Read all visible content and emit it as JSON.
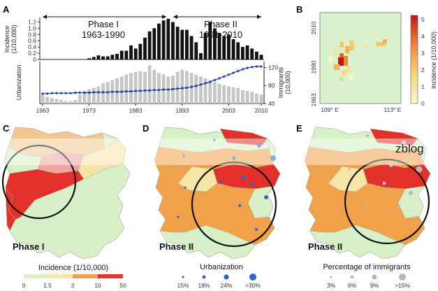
{
  "panel_labels": {
    "A": "A",
    "B": "B",
    "C": "C",
    "D": "D",
    "E": "E"
  },
  "chart_data": [
    {
      "id": "A-top",
      "type": "bar",
      "ylabel": "Incidence\n(1/10,000)",
      "ylim": [
        0,
        1.3
      ],
      "yticks": [
        "0",
        "0.2",
        "0.4",
        "0.6",
        "0.8",
        "1.0",
        "1.2"
      ],
      "x": [
        1963,
        1964,
        1965,
        1966,
        1967,
        1968,
        1969,
        1970,
        1971,
        1972,
        1973,
        1974,
        1975,
        1976,
        1977,
        1978,
        1979,
        1980,
        1981,
        1982,
        1983,
        1984,
        1985,
        1986,
        1987,
        1988,
        1989,
        1990,
        1991,
        1992,
        1993,
        1994,
        1995,
        1996,
        1997,
        1998,
        1999,
        2000,
        2001,
        2002,
        2003,
        2004,
        2005,
        2006,
        2007,
        2008,
        2009,
        2010
      ],
      "values": [
        0,
        0,
        0,
        0,
        0,
        0,
        0,
        0,
        0,
        0,
        0.04,
        0.08,
        0.13,
        0.1,
        0.1,
        0.15,
        0.18,
        0.28,
        0.28,
        0.45,
        0.35,
        0.5,
        0.7,
        0.9,
        1.0,
        1.15,
        1.25,
        1.3,
        1.2,
        1.05,
        0.95,
        0.95,
        0.75,
        0.55,
        0.2,
        0.85,
        1.2,
        1.0,
        0.85,
        0.75,
        0.8,
        0.65,
        0.55,
        0.4,
        0.45,
        0.35,
        0.25,
        0.15
      ],
      "annotations": [
        {
          "title": "Phase I",
          "range": "1963-1990"
        },
        {
          "title": "Phase II",
          "range": "1991-2010"
        }
      ]
    },
    {
      "id": "A-bottom",
      "type": "bar+line",
      "ylabel_left": "Urbanization",
      "ylabel_right": "Immigrants\n(10,000)",
      "right_ylim": [
        40,
        130
      ],
      "right_yticks": [
        "40",
        "80",
        "120"
      ],
      "xticks": [
        "1963",
        "1973",
        "1983",
        "1993",
        "2003",
        "2010"
      ],
      "x": [
        1963,
        1964,
        1965,
        1966,
        1967,
        1968,
        1969,
        1970,
        1971,
        1972,
        1973,
        1974,
        1975,
        1976,
        1977,
        1978,
        1979,
        1980,
        1981,
        1982,
        1983,
        1984,
        1985,
        1986,
        1987,
        1988,
        1989,
        1990,
        1991,
        1992,
        1993,
        1994,
        1995,
        1996,
        1997,
        1998,
        1999,
        2000,
        2001,
        2002,
        2003,
        2004,
        2005,
        2006,
        2007,
        2008,
        2009,
        2010
      ],
      "immigrants": [
        60,
        55,
        52,
        50,
        48,
        46,
        45,
        48,
        60,
        68,
        72,
        75,
        78,
        85,
        88,
        92,
        96,
        100,
        104,
        108,
        110,
        112,
        110,
        125,
        115,
        108,
        105,
        100,
        102,
        110,
        115,
        112,
        108,
        104,
        100,
        96,
        92,
        88,
        84,
        80,
        78,
        76,
        74,
        70,
        68,
        66,
        62,
        60
      ],
      "urbanization": [
        62,
        62,
        63,
        63,
        63,
        63,
        63,
        64,
        64,
        64,
        64,
        65,
        65,
        65,
        65,
        66,
        66,
        66,
        67,
        67,
        68,
        68,
        69,
        69,
        70,
        70,
        71,
        71,
        72,
        73,
        74,
        75,
        77,
        79,
        82,
        85,
        88,
        92,
        96,
        100,
        104,
        108,
        112,
        116,
        119,
        121,
        122,
        122
      ]
    },
    {
      "id": "B",
      "type": "heatmap",
      "yticks": [
        "2010",
        "1990",
        "1963"
      ],
      "xticks": [
        "109° E",
        "113° E"
      ],
      "colorbar_label": "Incidence (1/10,000)",
      "colorbar_ticks": [
        "0",
        "1",
        "2",
        "3",
        "4",
        "5"
      ]
    },
    {
      "id": "maps",
      "type": "map",
      "panels": [
        {
          "key": "C",
          "phase": "Phase I"
        },
        {
          "key": "D",
          "phase": "Phase II"
        },
        {
          "key": "E",
          "phase": "Phase II"
        }
      ],
      "incidence_legend": {
        "title": "Incidence (1/10,000)",
        "ticks": [
          "0",
          "1.5",
          "3",
          "10",
          "50"
        ],
        "colors": [
          "#d8f0c8",
          "#f6e6a6",
          "#f0a14a",
          "#e6332a"
        ]
      },
      "urbanization_legend": {
        "title": "Urbanization",
        "items": [
          "15%",
          "18%",
          "24%",
          ">30%"
        ],
        "color": "#2b68c8"
      },
      "immigrants_legend": {
        "title": "Percentage of immigrants",
        "items": [
          "3%",
          "6%",
          "9%",
          ">15%"
        ],
        "color": "#b9b9b9"
      }
    }
  ],
  "watermark": "zblog"
}
